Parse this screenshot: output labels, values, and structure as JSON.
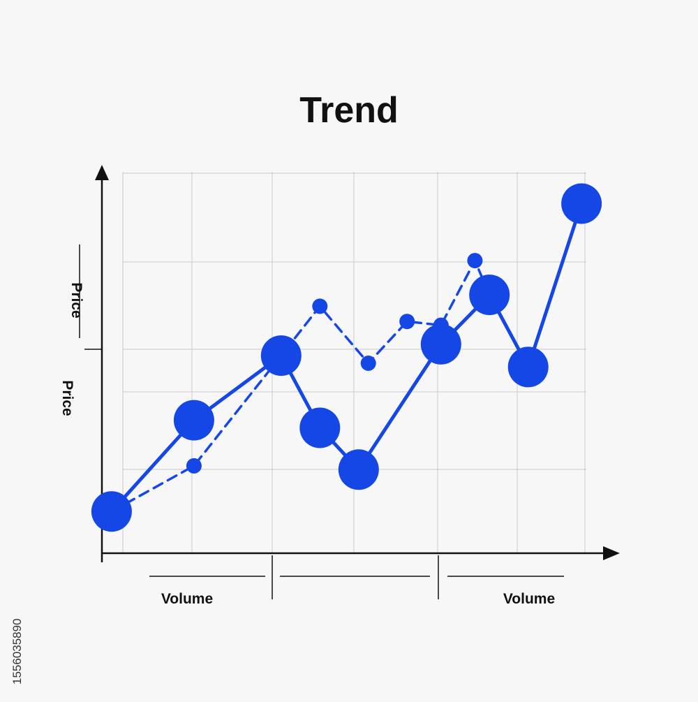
{
  "chart_data": {
    "type": "line",
    "title": "Trend",
    "xlabel": "Volume",
    "ylabel": "Price",
    "grid": true,
    "xlim": [
      0,
      10
    ],
    "ylim": [
      0,
      10
    ],
    "x": [
      0,
      1,
      2,
      3,
      4,
      5,
      6,
      7,
      8,
      9,
      10
    ],
    "series": [
      {
        "style": "solid",
        "color": "#1447e6",
        "marker_size": "large",
        "points": [
          [
            0.2,
            1.1
          ],
          [
            1.9,
            3.5
          ],
          [
            3.7,
            5.2
          ],
          [
            4.5,
            3.3
          ],
          [
            5.3,
            2.2
          ],
          [
            7.0,
            5.5
          ],
          [
            8.0,
            6.8
          ],
          [
            8.8,
            4.9
          ],
          [
            9.9,
            9.2
          ]
        ]
      },
      {
        "style": "dashed",
        "color": "#1447e6",
        "marker_size": "small",
        "points": [
          [
            0.2,
            1.1
          ],
          [
            1.9,
            2.3
          ],
          [
            3.7,
            5.2
          ],
          [
            4.5,
            6.5
          ],
          [
            5.5,
            5.0
          ],
          [
            6.3,
            6.1
          ],
          [
            7.0,
            6.0
          ],
          [
            7.7,
            7.7
          ],
          [
            8.0,
            6.8
          ]
        ]
      }
    ]
  },
  "stock_id": "1556035890"
}
